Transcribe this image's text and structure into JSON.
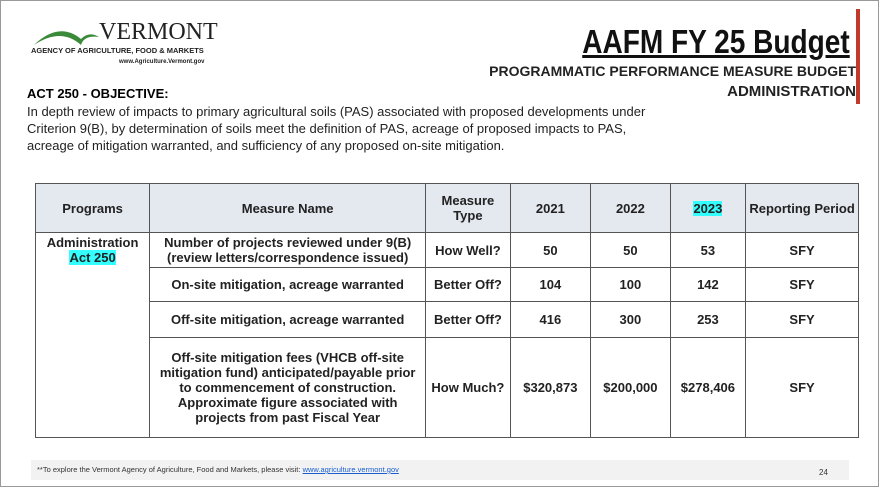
{
  "logo": {
    "name": "VERMONT",
    "agency": "AGENCY OF AGRICULTURE, FOOD & MARKETS",
    "url": "www.Agriculture.Vermont.gov"
  },
  "header": {
    "title": "AAFM FY 25 Budget",
    "subtitle": "PROGRAMMATIC PERFORMANCE MEASURE BUDGET",
    "section": "ADMINISTRATION"
  },
  "objective": {
    "label": "ACT 250 - OBJECTIVE:",
    "text": "In depth review of impacts to primary agricultural soils (PAS) associated with proposed developments under Criterion 9(B), by determination of soils meet the definition of PAS, acreage of proposed impacts to PAS, acreage of mitigation warranted, and sufficiency of any proposed on-site mitigation."
  },
  "table": {
    "columns": [
      "Programs",
      "Measure Name",
      "Measure Type",
      "2021",
      "2022",
      "2023",
      "Reporting Period"
    ],
    "program": [
      "Administration",
      "Act 250"
    ],
    "rows": [
      [
        "Number of projects reviewed under 9(B) (review letters/correspondence issued)",
        "How Well?",
        "50",
        "50",
        "53",
        "SFY"
      ],
      [
        "On-site mitigation, acreage warranted",
        "Better Off?",
        "104",
        "100",
        "142",
        "SFY"
      ],
      [
        "Off-site mitigation, acreage warranted",
        "Better Off?",
        "416",
        "300",
        "253",
        "SFY"
      ],
      [
        "Off-site mitigation fees (VHCB off-site mitigation fund) anticipated/payable prior to commencement of construction. Approximate figure associated with projects from past Fiscal Year",
        "How Much?",
        "$320,873",
        "$200,000",
        "$278,406",
        "SFY"
      ]
    ]
  },
  "footer": {
    "note": "**To explore the Vermont Agency of Agriculture, Food and Markets, please visit:",
    "link": "www.agriculture.vermont.gov",
    "page": "24"
  }
}
